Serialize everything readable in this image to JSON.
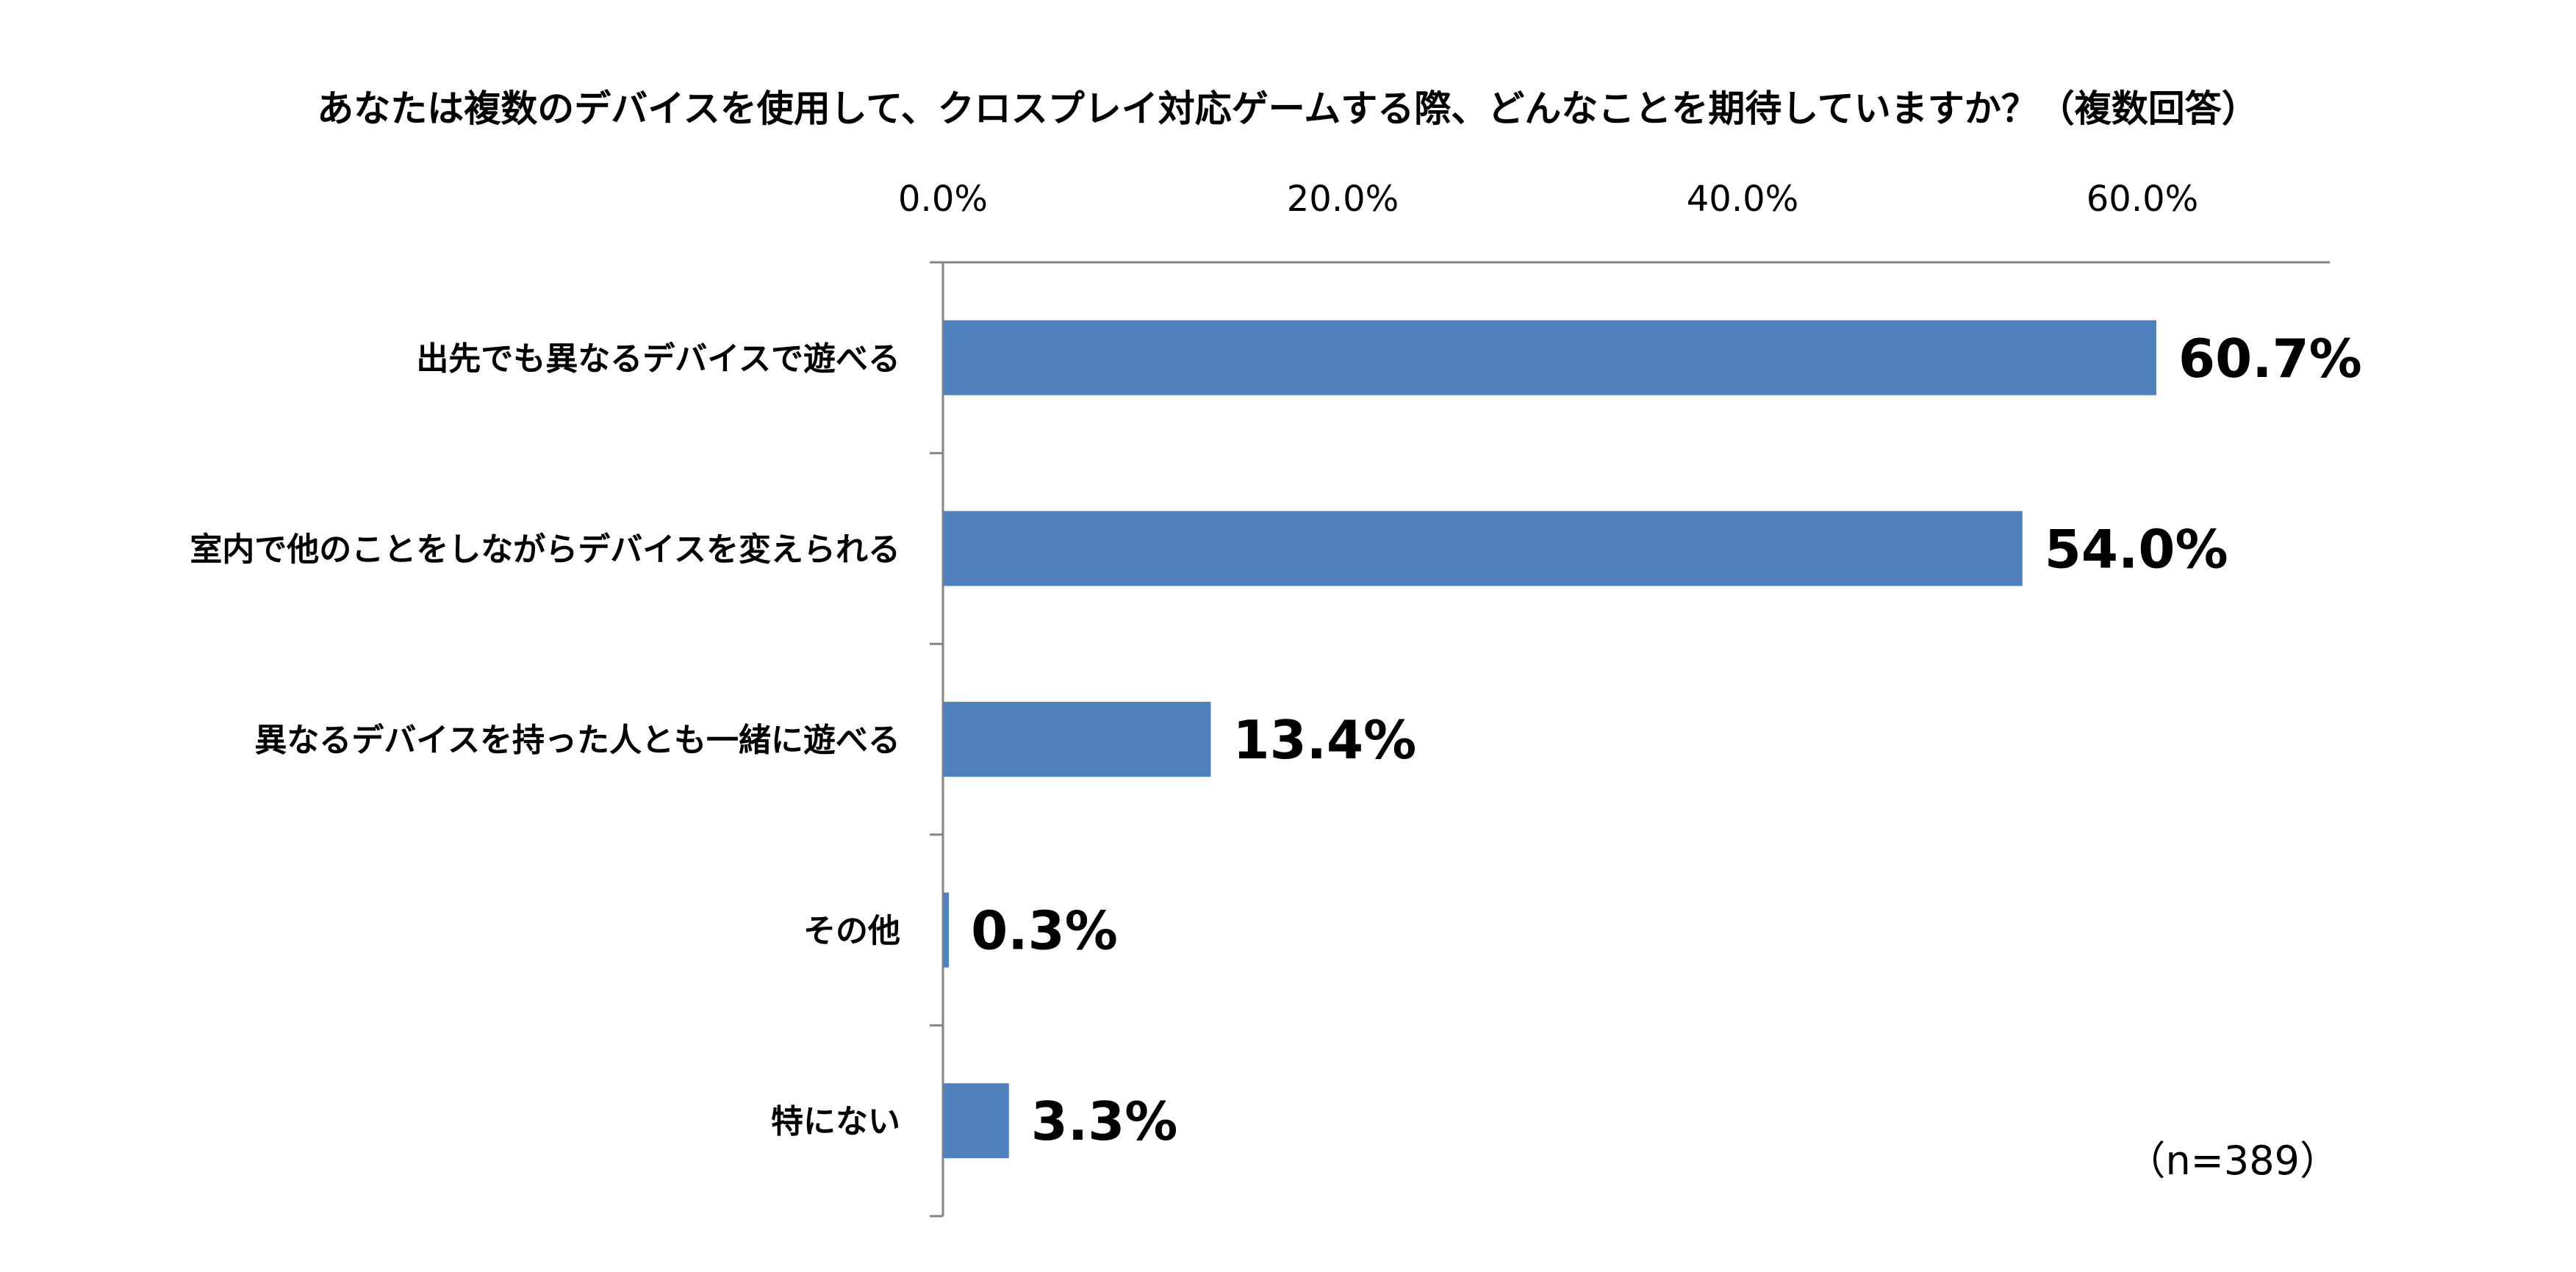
{
  "chart_data": {
    "type": "bar",
    "orientation": "horizontal",
    "title": "あなたは複数のデバイスを使用して、クロスプレイ対応ゲームする際、どんなことを期待していますか？（複数回答）",
    "categories": [
      "出先でも異なるデバイスで遊べる",
      "室内で他のことをしながらデバイスを変えられる",
      "異なるデバイスを持った人とも一緒に遊べる",
      "その他",
      "特にない"
    ],
    "values": [
      60.7,
      54.0,
      13.4,
      0.3,
      3.3
    ],
    "value_labels": [
      "60.7%",
      "54.0%",
      "13.4%",
      "0.3%",
      "3.3%"
    ],
    "xlim": [
      0,
      70
    ],
    "x_ticks": [
      0,
      20,
      40,
      60
    ],
    "x_tick_labels": [
      "0.0%",
      "20.0%",
      "40.0%",
      "60.0%"
    ],
    "x_axis_position": "top",
    "grid": false,
    "legend": "none",
    "bar_color": "#4F81BD",
    "axis_color": "#868686",
    "note": "（n=389）"
  }
}
